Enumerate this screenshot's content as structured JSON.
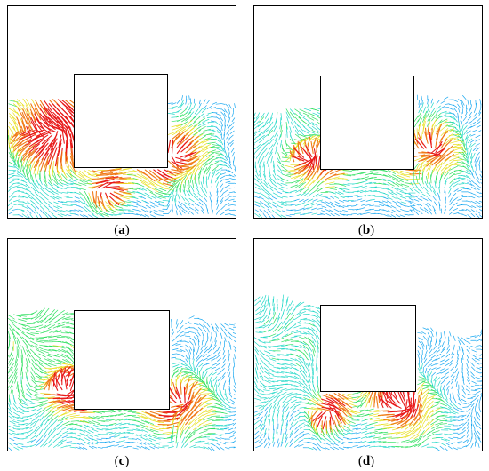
{
  "panels": [
    {
      "label": "a",
      "colors": [
        "#1a3fd9",
        "#19a8f0",
        "#22d8c8",
        "#2fe060",
        "#e8e020",
        "#f07a18",
        "#e81818"
      ],
      "description_keys": [
        "free-surface",
        "left-jet",
        "right-vortex"
      ]
    },
    {
      "label": "b",
      "colors": [
        "#1a3fd9",
        "#19a8f0",
        "#22d8c8",
        "#2fe060",
        "#e8e020",
        "#f07a18",
        "#e81818"
      ],
      "description_keys": [
        "free-surface",
        "left-fan",
        "right-vortex"
      ]
    },
    {
      "label": "c",
      "colors": [
        "#1a3fd9",
        "#19a8f0",
        "#22d8c8",
        "#2fe060",
        "#e8e020",
        "#f07a18",
        "#e81818"
      ],
      "description_keys": [
        "free-surface",
        "left-vortex",
        "right-jet"
      ]
    },
    {
      "label": "d",
      "colors": [
        "#1a3fd9",
        "#19a8f0",
        "#22d8c8",
        "#2fe060",
        "#e8e020",
        "#f07a18",
        "#e81818"
      ],
      "description_keys": [
        "free-surface",
        "left-jet",
        "right-fan"
      ]
    }
  ]
}
